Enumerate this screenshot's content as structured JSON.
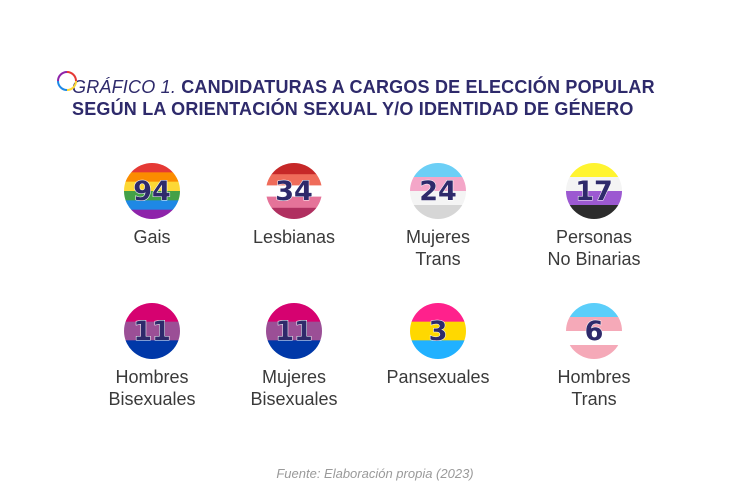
{
  "title": {
    "prefix": "GRÁFICO 1.",
    "line1": "CANDIDATURAS A CARGOS DE ELECCIÓN POPULAR",
    "line2": "SEGÚN LA ORIENTACIÓN SEXUAL Y/O IDENTIDAD DE GÉNERO"
  },
  "source": "Fuente: Elaboración propia (2023)",
  "chart_data": {
    "type": "table",
    "categories": [
      "Gais",
      "Lesbianas",
      "Mujeres Trans",
      "Personas No Binarias",
      "Hombres Bisexuales",
      "Mujeres Bisexuales",
      "Pansexuales",
      "Hombres Trans"
    ],
    "values": [
      94,
      34,
      24,
      17,
      11,
      11,
      3,
      6
    ],
    "items": [
      {
        "value": "94",
        "label": "Gais",
        "flag": [
          "#e53935",
          "#fb8c00",
          "#fdd835",
          "#43a047",
          "#1e88e5",
          "#8e24aa"
        ]
      },
      {
        "value": "34",
        "label": "Lesbianas",
        "flag": [
          "#c62828",
          "#ef6c5a",
          "#ffffff",
          "#e57399",
          "#b03060"
        ]
      },
      {
        "value": "24",
        "label": "Mujeres\nTrans",
        "flag": [
          "#6ccff6",
          "#f4a6c8",
          "#f4f4f4",
          "#d6d6d6"
        ]
      },
      {
        "value": "17",
        "label": "Personas\nNo Binarias",
        "flag": [
          "#fff430",
          "#f4f4f4",
          "#9c59d1",
          "#2c2c2c"
        ]
      },
      {
        "value": "11",
        "label": "Hombres\nBisexuales",
        "flag": [
          "#d60270",
          "#9b4f96",
          "#0038a8"
        ]
      },
      {
        "value": "11",
        "label": "Mujeres\nBisexuales",
        "flag": [
          "#d60270",
          "#9b4f96",
          "#0038a8"
        ]
      },
      {
        "value": "3",
        "label": "Pansexuales",
        "flag": [
          "#ff218c",
          "#ffd800",
          "#21b1ff"
        ]
      },
      {
        "value": "6",
        "label": "Hombres\nTrans",
        "flag": [
          "#5bcefa",
          "#f5a9b8",
          "#ffffff",
          "#f5a9b8"
        ]
      }
    ]
  },
  "colors": {
    "title": "#2e2a6b",
    "number": "#2e2a6b",
    "label": "#3a3a3a",
    "source": "#9a9a9a"
  }
}
